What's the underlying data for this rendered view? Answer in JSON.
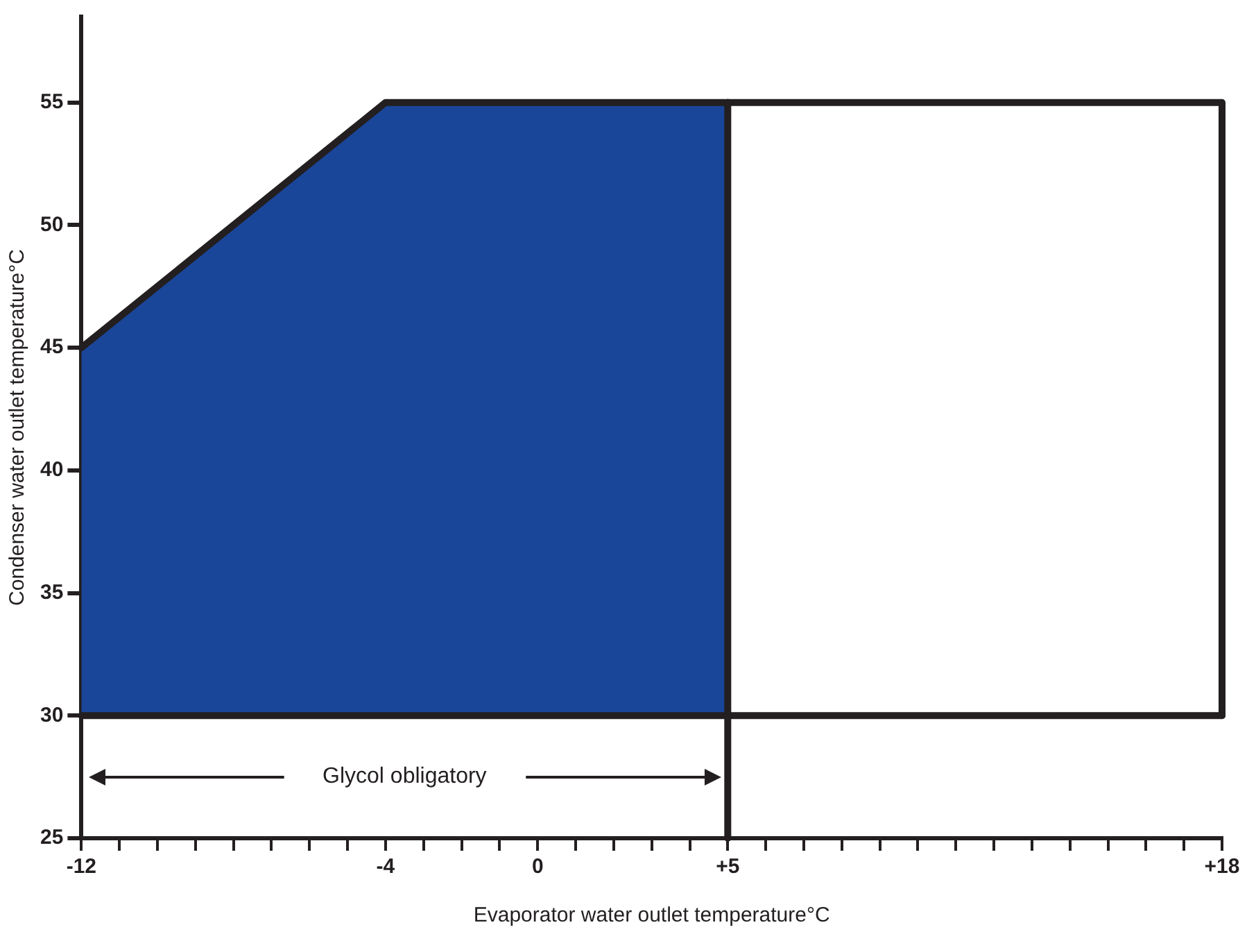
{
  "chart_data": {
    "type": "line",
    "xlabel": "Evaporator water outlet temperature°C",
    "ylabel": "Condenser water outlet temperature°C",
    "xlim": [
      -12,
      18
    ],
    "ylim": [
      25,
      58.5
    ],
    "xticks": [
      -12,
      {
        "value": -11,
        "label": null
      },
      {
        "value": -10,
        "label": null
      },
      {
        "value": -9,
        "label": null
      },
      {
        "value": -8,
        "label": null
      },
      {
        "value": -7,
        "label": null
      },
      {
        "value": -6,
        "label": null
      },
      {
        "value": -5,
        "label": null
      },
      -4,
      {
        "value": -3,
        "label": null
      },
      {
        "value": -2,
        "label": null
      },
      {
        "value": -1,
        "label": null
      },
      0,
      {
        "value": 1,
        "label": null
      },
      {
        "value": 2,
        "label": null
      },
      {
        "value": 3,
        "label": null
      },
      {
        "value": 4,
        "label": null
      },
      {
        "value": 5,
        "label": "+5"
      },
      {
        "value": 6,
        "label": null
      },
      {
        "value": 7,
        "label": null
      },
      {
        "value": 8,
        "label": null
      },
      {
        "value": 9,
        "label": null
      },
      {
        "value": 10,
        "label": null
      },
      {
        "value": 11,
        "label": null
      },
      {
        "value": 12,
        "label": null
      },
      {
        "value": 13,
        "label": null
      },
      {
        "value": 14,
        "label": null
      },
      {
        "value": 15,
        "label": null
      },
      {
        "value": 16,
        "label": null
      },
      {
        "value": 17,
        "label": null
      },
      {
        "value": 18,
        "label": "+18"
      }
    ],
    "yticks": [
      25,
      30,
      35,
      40,
      45,
      50,
      55
    ],
    "series": [
      {
        "type": "area",
        "color": "#1a4699",
        "x": [
          -12,
          -4,
          5
        ],
        "values": [
          45,
          55,
          55
        ]
      },
      {
        "type": "line",
        "color": "#231f20",
        "x": [
          5,
          18,
          18
        ],
        "values": [
          55,
          55,
          30
        ]
      }
    ],
    "ref_lines": [
      {
        "axis": "y",
        "value": 30,
        "color": "#231f20"
      },
      {
        "axis": "x",
        "value": 5,
        "color": "#231f20"
      }
    ],
    "annotations": [
      "Glycol obligatory"
    ],
    "grid": false,
    "legend": false,
    "marker": "none"
  }
}
